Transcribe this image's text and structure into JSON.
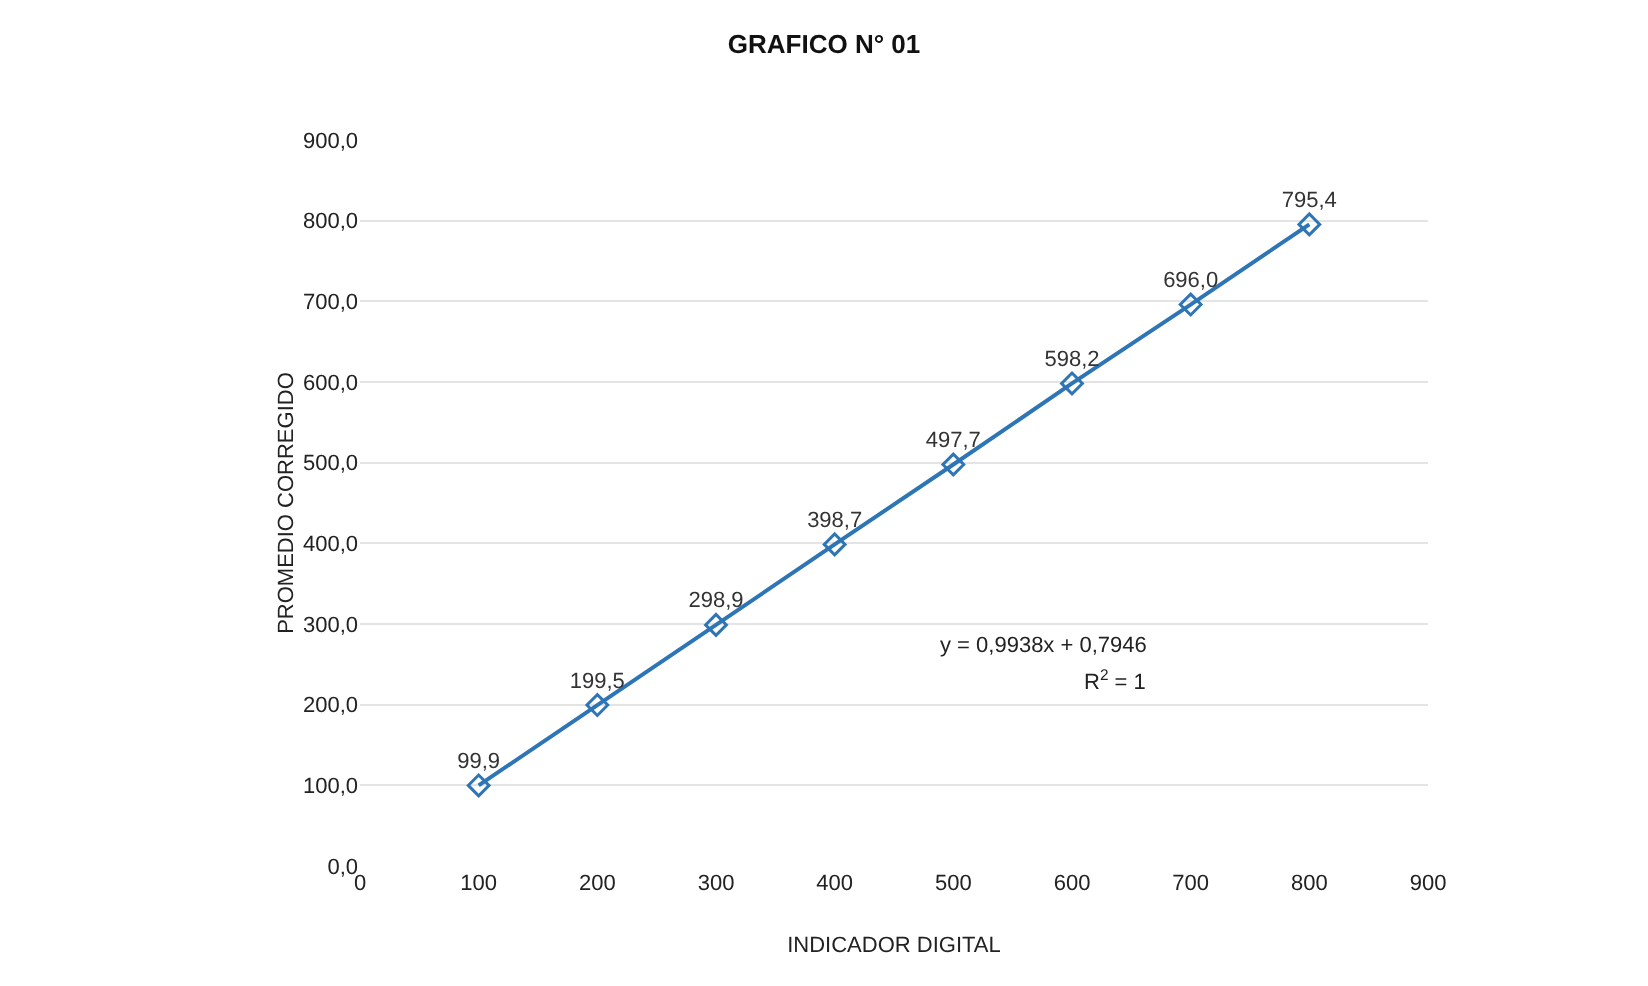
{
  "chart_data": {
    "type": "line",
    "title": "GRAFICO N° 01",
    "xlabel": "INDICADOR DIGITAL",
    "ylabel": "PROMEDIO CORREGIDO",
    "x": [
      100,
      200,
      300,
      400,
      500,
      600,
      700,
      800
    ],
    "series": [
      {
        "color": "#2e75b6",
        "values": [
          99.9,
          199.5,
          298.9,
          398.7,
          497.7,
          598.2,
          696.0,
          795.4
        ],
        "value_labels": [
          "99,9",
          "199,5",
          "298,9",
          "398,7",
          "497,7",
          "598,2",
          "696,0",
          "795,4"
        ]
      }
    ],
    "marker": "diamond",
    "line_style": "solid",
    "grid": "y",
    "legend": false,
    "xlim": [
      0,
      900
    ],
    "xticks": [
      0,
      100,
      200,
      300,
      400,
      500,
      600,
      700,
      800,
      900
    ],
    "ylim": [
      0,
      900
    ],
    "yticks": [
      {
        "value": 0,
        "label": "0,0"
      },
      {
        "value": 100,
        "label": "100,0"
      },
      {
        "value": 200,
        "label": "200,0"
      },
      {
        "value": 300,
        "label": "300,0"
      },
      {
        "value": 400,
        "label": "400,0"
      },
      {
        "value": 500,
        "label": "500,0"
      },
      {
        "value": 600,
        "label": "600,0"
      },
      {
        "value": 700,
        "label": "700,0"
      },
      {
        "value": 800,
        "label": "800,0"
      },
      {
        "value": 900,
        "label": "900,0"
      }
    ],
    "annotations": [
      "y = 0,9938x + 0,7946",
      "R$^{2}$ = 1"
    ]
  }
}
